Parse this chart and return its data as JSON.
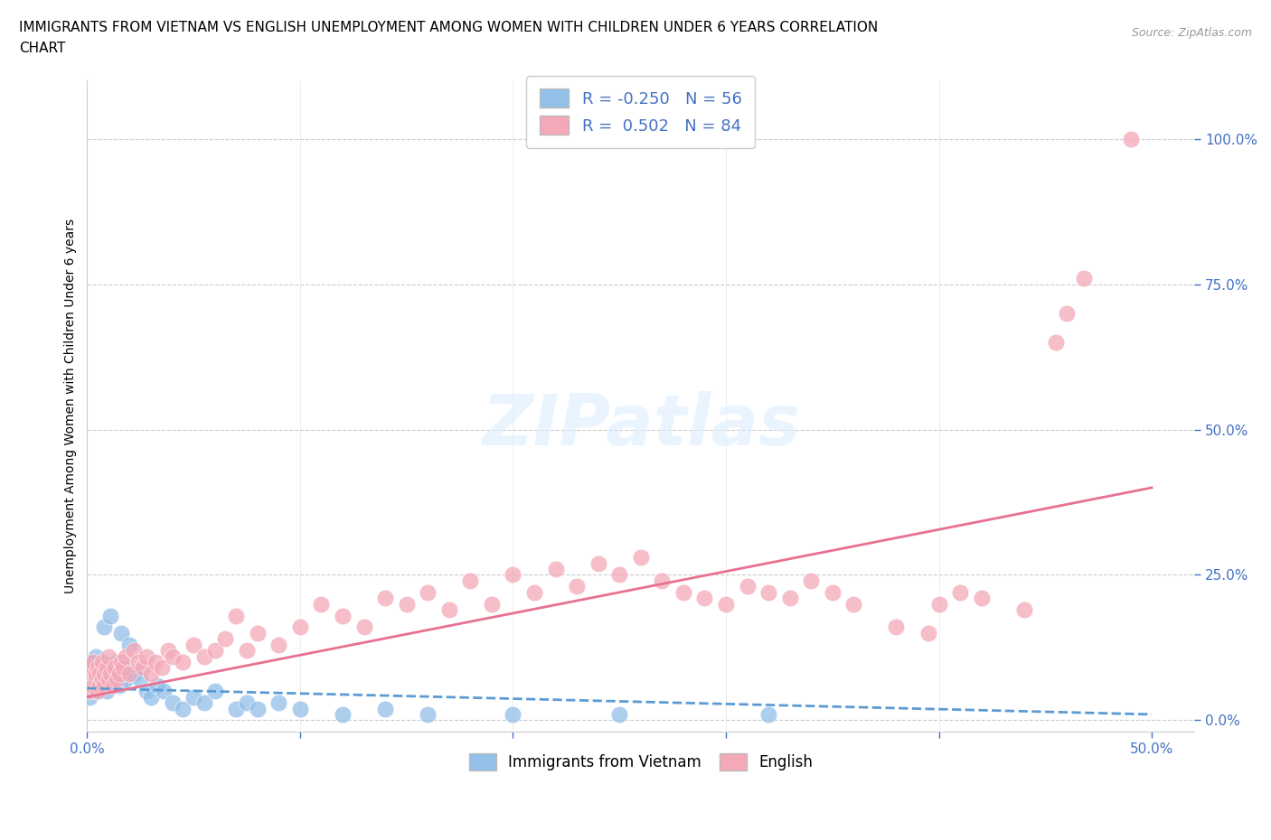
{
  "title": "IMMIGRANTS FROM VIETNAM VS ENGLISH UNEMPLOYMENT AMONG WOMEN WITH CHILDREN UNDER 6 YEARS CORRELATION\nCHART",
  "source": "Source: ZipAtlas.com",
  "ylabel": "Unemployment Among Women with Children Under 6 years",
  "y_ticks": [
    0.0,
    0.25,
    0.5,
    0.75,
    1.0
  ],
  "y_tick_labels": [
    "0.0%",
    "25.0%",
    "50.0%",
    "75.0%",
    "100.0%"
  ],
  "x_ticks": [
    0.0,
    0.5
  ],
  "x_tick_labels": [
    "0.0%",
    "50.0%"
  ],
  "xlim": [
    0.0,
    0.52
  ],
  "ylim": [
    -0.02,
    1.1
  ],
  "blue_color": "#92C0E8",
  "pink_color": "#F4A8B8",
  "blue_line_color": "#5B9BD5",
  "pink_line_color": "#E87090",
  "text_color_blue": "#4472C4",
  "legend_R1": "R = -0.250   N = 56",
  "legend_R2": "R =  0.502   N = 84",
  "watermark": "ZIPatlas",
  "blue_scatter_x": [
    0.0,
    0.001,
    0.001,
    0.002,
    0.002,
    0.002,
    0.003,
    0.003,
    0.003,
    0.004,
    0.004,
    0.004,
    0.005,
    0.005,
    0.005,
    0.006,
    0.006,
    0.007,
    0.007,
    0.008,
    0.008,
    0.009,
    0.009,
    0.01,
    0.01,
    0.011,
    0.012,
    0.013,
    0.014,
    0.015,
    0.016,
    0.017,
    0.018,
    0.02,
    0.022,
    0.025,
    0.028,
    0.03,
    0.033,
    0.036,
    0.04,
    0.045,
    0.05,
    0.055,
    0.06,
    0.07,
    0.075,
    0.08,
    0.09,
    0.1,
    0.12,
    0.14,
    0.16,
    0.2,
    0.25,
    0.32
  ],
  "blue_scatter_y": [
    0.05,
    0.07,
    0.04,
    0.08,
    0.06,
    0.09,
    0.05,
    0.1,
    0.07,
    0.06,
    0.08,
    0.11,
    0.07,
    0.09,
    0.05,
    0.08,
    0.06,
    0.1,
    0.07,
    0.08,
    0.16,
    0.05,
    0.07,
    0.06,
    0.09,
    0.18,
    0.08,
    0.07,
    0.1,
    0.06,
    0.15,
    0.09,
    0.07,
    0.13,
    0.08,
    0.07,
    0.05,
    0.04,
    0.06,
    0.05,
    0.03,
    0.02,
    0.04,
    0.03,
    0.05,
    0.02,
    0.03,
    0.02,
    0.03,
    0.02,
    0.01,
    0.02,
    0.01,
    0.01,
    0.01,
    0.01
  ],
  "pink_scatter_x": [
    0.0,
    0.001,
    0.001,
    0.002,
    0.002,
    0.003,
    0.003,
    0.004,
    0.004,
    0.005,
    0.005,
    0.006,
    0.006,
    0.007,
    0.007,
    0.008,
    0.008,
    0.009,
    0.01,
    0.01,
    0.011,
    0.012,
    0.013,
    0.014,
    0.015,
    0.016,
    0.017,
    0.018,
    0.02,
    0.022,
    0.024,
    0.026,
    0.028,
    0.03,
    0.032,
    0.035,
    0.038,
    0.04,
    0.045,
    0.05,
    0.055,
    0.06,
    0.065,
    0.07,
    0.075,
    0.08,
    0.09,
    0.1,
    0.11,
    0.12,
    0.13,
    0.14,
    0.15,
    0.16,
    0.17,
    0.18,
    0.19,
    0.2,
    0.21,
    0.22,
    0.23,
    0.24,
    0.25,
    0.26,
    0.27,
    0.28,
    0.29,
    0.3,
    0.31,
    0.32,
    0.33,
    0.34,
    0.35,
    0.36,
    0.38,
    0.395,
    0.4,
    0.41,
    0.42,
    0.44,
    0.455,
    0.46,
    0.468,
    0.49
  ],
  "pink_scatter_y": [
    0.06,
    0.08,
    0.05,
    0.07,
    0.09,
    0.06,
    0.1,
    0.07,
    0.08,
    0.05,
    0.09,
    0.06,
    0.08,
    0.07,
    0.1,
    0.06,
    0.08,
    0.09,
    0.07,
    0.11,
    0.08,
    0.06,
    0.09,
    0.07,
    0.08,
    0.1,
    0.09,
    0.11,
    0.08,
    0.12,
    0.1,
    0.09,
    0.11,
    0.08,
    0.1,
    0.09,
    0.12,
    0.11,
    0.1,
    0.13,
    0.11,
    0.12,
    0.14,
    0.18,
    0.12,
    0.15,
    0.13,
    0.16,
    0.2,
    0.18,
    0.16,
    0.21,
    0.2,
    0.22,
    0.19,
    0.24,
    0.2,
    0.25,
    0.22,
    0.26,
    0.23,
    0.27,
    0.25,
    0.28,
    0.24,
    0.22,
    0.21,
    0.2,
    0.23,
    0.22,
    0.21,
    0.24,
    0.22,
    0.2,
    0.16,
    0.15,
    0.2,
    0.22,
    0.21,
    0.19,
    0.65,
    0.7,
    0.76,
    1.0
  ],
  "blue_trend": [
    -0.01,
    0.055
  ],
  "pink_trend": [
    0.04,
    0.4
  ]
}
